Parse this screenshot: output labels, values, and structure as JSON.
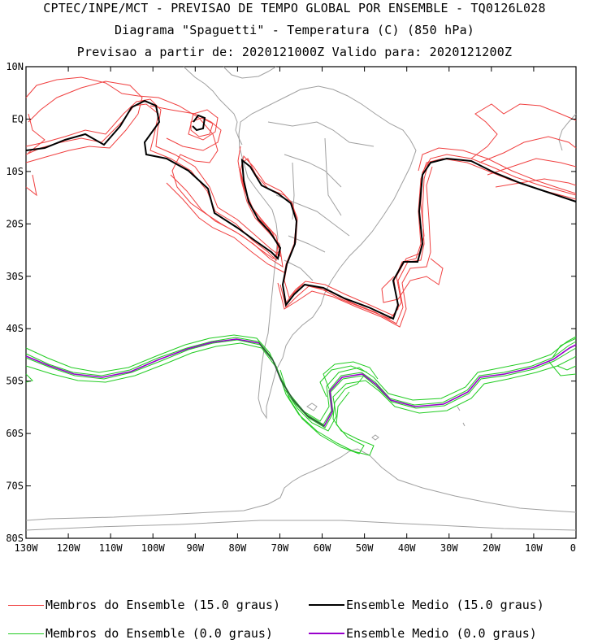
{
  "header": {
    "line1": "CPTEC/INPE/MCT - PREVISAO DE TEMPO GLOBAL POR ENSEMBLE - TQ0126L028",
    "line2": "Diagrama \"Spaguetti\" - Temperatura (C) (850 hPa)",
    "line3": "Previsao a partir de: 2020121000Z  Valido para: 2020121200Z"
  },
  "map": {
    "lat_labels": [
      "10N",
      "EQ",
      "10S",
      "20S",
      "30S",
      "40S",
      "50S",
      "60S",
      "70S",
      "80S"
    ],
    "lon_labels": [
      "130W",
      "120W",
      "110W",
      "100W",
      "90W",
      "80W",
      "70W",
      "60W",
      "50W",
      "40W",
      "30W",
      "20W",
      "10W",
      "0"
    ],
    "lat_range": [
      -80,
      10
    ],
    "lon_range": [
      -130,
      0
    ]
  },
  "legend": {
    "members_15": "Membros do Ensemble (15.0 graus)",
    "mean_15": "Ensemble Medio (15.0 graus)",
    "members_0": "Membros do Ensemble (0.0 graus)",
    "mean_0": "Ensemble Medio (0.0 graus)"
  },
  "colors": {
    "members_15": "#f04040",
    "mean_15": "#000000",
    "members_0": "#22cc22",
    "mean_0": "#9900cc",
    "coast": "#a0a0a0",
    "frame": "#000000"
  }
}
